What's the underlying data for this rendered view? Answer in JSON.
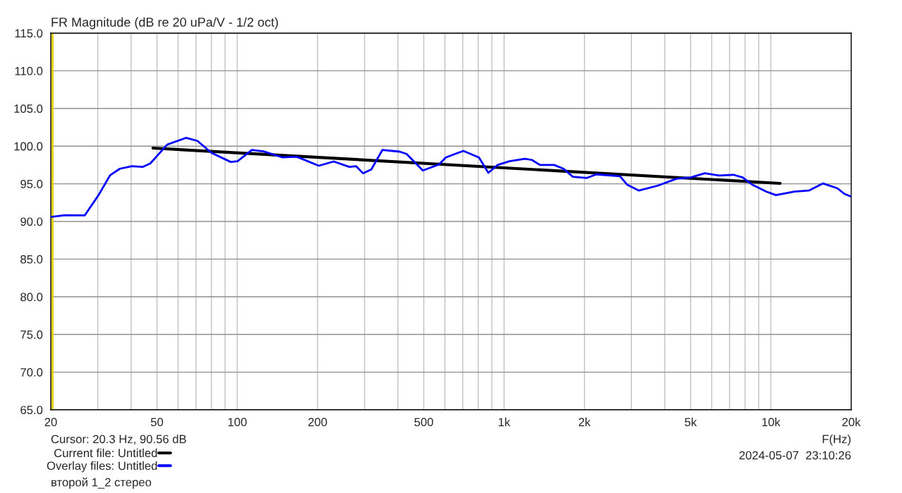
{
  "chart_data": {
    "type": "line",
    "title": "FR Magnitude (dB re 20 uPa/V - 1/2 oct)",
    "xlabel": "F(Hz)",
    "log": "x",
    "grid": true,
    "legend": "bottom left",
    "marker": "none",
    "line_style": "solid",
    "xlim": [
      20,
      20000
    ],
    "ylim": [
      65,
      115
    ],
    "xticks": [
      20,
      {
        "value": 30,
        "label": null
      },
      {
        "value": 40,
        "label": null
      },
      50,
      {
        "value": 60,
        "label": null
      },
      {
        "value": 70,
        "label": null
      },
      {
        "value": 80,
        "label": null
      },
      {
        "value": 90,
        "label": null
      },
      100,
      200,
      {
        "value": 300,
        "label": null
      },
      {
        "value": 400,
        "label": null
      },
      500,
      {
        "value": 600,
        "label": null
      },
      {
        "value": 700,
        "label": null
      },
      {
        "value": 800,
        "label": null
      },
      {
        "value": 900,
        "label": null
      },
      {
        "value": 1000,
        "label": "1k"
      },
      {
        "value": 2000,
        "label": "2k"
      },
      {
        "value": 3000,
        "label": null
      },
      {
        "value": 4000,
        "label": null
      },
      {
        "value": 5000,
        "label": "5k"
      },
      {
        "value": 6000,
        "label": null
      },
      {
        "value": 7000,
        "label": null
      },
      {
        "value": 8000,
        "label": null
      },
      {
        "value": 9000,
        "label": null
      },
      {
        "value": 10000,
        "label": "10k"
      },
      {
        "value": 20000,
        "label": "20k"
      }
    ],
    "yticks": [
      {
        "value": 65,
        "label": "65.0"
      },
      {
        "value": 70,
        "label": "70.0"
      },
      {
        "value": 75,
        "label": "75.0"
      },
      {
        "value": 80,
        "label": "80.0"
      },
      {
        "value": 85,
        "label": "85.0"
      },
      {
        "value": 90,
        "label": "90.0"
      },
      {
        "value": 95,
        "label": "95.0"
      },
      {
        "value": 100,
        "label": "100.0"
      },
      {
        "value": 105,
        "label": "105.0"
      },
      {
        "value": 110,
        "label": "110.0"
      },
      {
        "value": 115,
        "label": "115.0"
      }
    ],
    "ref_lines": [
      {
        "axis": "x",
        "value": 20.3,
        "color": "#e0d000"
      }
    ],
    "series": [
      {
        "name": "Current file: Untitled",
        "color": "#000000",
        "x": [
          48.3,
          10830
        ],
        "values": [
          99.74,
          95.06
        ]
      },
      {
        "name": "Overlay files: Untitled",
        "color": "#0000ff",
        "x": [
          20,
          22.6,
          26.8,
          30.2,
          33.4,
          36.3,
          40.3,
          44.2,
          47.2,
          54.6,
          64.2,
          70.9,
          80.1,
          94.5,
          100.2,
          113.4,
          125.4,
          148,
          166.9,
          202,
          229.9,
          263.1,
          279,
          296,
          318,
          350,
          406,
          431,
          496,
          570,
          605,
          655,
          704,
          805,
          873,
          946,
          1047,
          1197,
          1271,
          1364,
          1540,
          1670,
          1810,
          2044,
          2215,
          2719,
          2890,
          3200,
          3764,
          4430,
          5002,
          5656,
          6393,
          7231,
          7843,
          8504,
          9623,
          10438,
          12260,
          13870,
          15690,
          17750,
          18880,
          20000
        ],
        "values": [
          90.6,
          90.84,
          90.8,
          93.5,
          96.15,
          97.0,
          97.33,
          97.24,
          97.7,
          100.2,
          101.1,
          100.7,
          99.1,
          97.9,
          98.0,
          99.5,
          99.3,
          98.5,
          98.6,
          97.4,
          97.96,
          97.24,
          97.33,
          96.4,
          96.9,
          99.5,
          99.27,
          98.96,
          96.77,
          97.56,
          98.5,
          98.96,
          99.36,
          98.5,
          96.46,
          97.5,
          98.0,
          98.33,
          98.17,
          97.5,
          97.5,
          97.0,
          95.93,
          95.78,
          96.25,
          96.0,
          94.9,
          94.1,
          94.75,
          95.68,
          95.84,
          96.4,
          96.1,
          96.2,
          95.84,
          94.9,
          93.96,
          93.5,
          93.96,
          94.1,
          95.05,
          94.4,
          93.65,
          93.3
        ]
      }
    ],
    "annotations": [
      "Cursor: 20.3 Hz, 90.56 dB",
      "второй 1_2 стерео",
      "2024-05-07  23:10:26"
    ]
  }
}
